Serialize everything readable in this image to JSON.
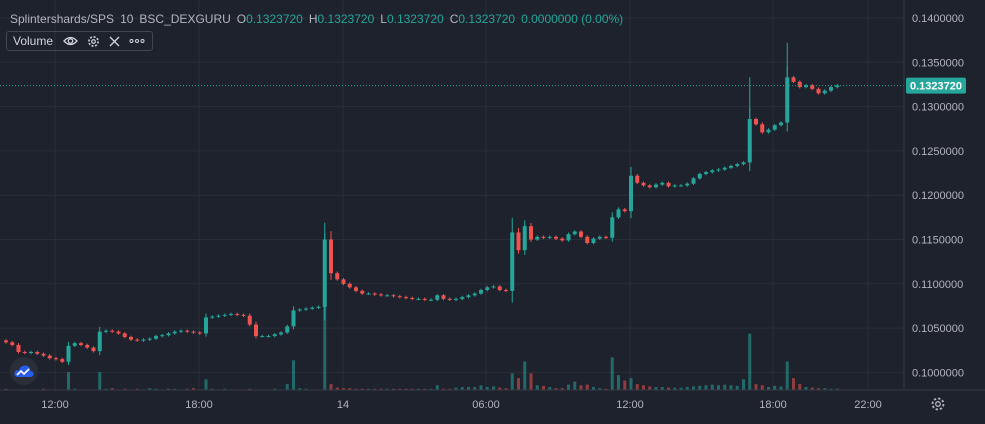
{
  "legend": {
    "symbol": "Splintershards/SPS",
    "interval": "10",
    "exchange": "BSC_DEXGURU",
    "o_label": "O",
    "o_value": "0.1323720",
    "h_label": "H",
    "h_value": "0.1323720",
    "l_label": "L",
    "l_value": "0.1323720",
    "c_label": "C",
    "c_value": "0.1323720",
    "change": "0.0000000 (0.00%)"
  },
  "volume_indicator": {
    "label": "Volume"
  },
  "colors": {
    "background": "#1e222d",
    "up": "#26a69a",
    "down": "#ef5350",
    "grid": "#2a2e39",
    "text": "#b2b5be"
  },
  "chart_data": {
    "type": "candlestick",
    "x_ticks": [
      "12:00",
      "18:00",
      "14",
      "06:00",
      "12:00",
      "18:00",
      "22:00"
    ],
    "y_ticks": [
      "0.1400000",
      "0.1350000",
      "0.1300000",
      "0.1250000",
      "0.1200000",
      "0.1150000",
      "0.1100000",
      "0.1050000",
      "0.1000000"
    ],
    "ylim": [
      0.098,
      0.141
    ],
    "last_price": "0.1323720",
    "last_price_value": 0.132372,
    "close_series": [
      0.1034,
      0.1031,
      0.1023,
      0.1022,
      0.1023,
      0.1021,
      0.1019,
      0.1016,
      0.1015,
      0.1012,
      0.103,
      0.1033,
      0.1031,
      0.1028,
      0.1024,
      0.1046,
      0.1047,
      0.1046,
      0.1044,
      0.104,
      0.1037,
      0.1036,
      0.1037,
      0.1038,
      0.1041,
      0.1042,
      0.1044,
      0.1046,
      0.1047,
      0.1046,
      0.1045,
      0.1044,
      0.1062,
      0.1063,
      0.1064,
      0.1065,
      0.1066,
      0.1065,
      0.1064,
      0.1054,
      0.1041,
      0.1041,
      0.1041,
      0.1043,
      0.1045,
      0.1052,
      0.107,
      0.1071,
      0.1072,
      0.1073,
      0.1074,
      0.115,
      0.1112,
      0.1105,
      0.11,
      0.1096,
      0.1092,
      0.1089,
      0.1089,
      0.1088,
      0.1087,
      0.1087,
      0.1086,
      0.1085,
      0.1084,
      0.1083,
      0.1083,
      0.1082,
      0.1082,
      0.1087,
      0.1083,
      0.1082,
      0.1083,
      0.1085,
      0.1087,
      0.1089,
      0.1093,
      0.1096,
      0.1097,
      0.1093,
      0.1092,
      0.1158,
      0.1138,
      0.1165,
      0.115,
      0.1153,
      0.1152,
      0.1153,
      0.1151,
      0.1149,
      0.1156,
      0.1159,
      0.1153,
      0.1146,
      0.1151,
      0.1153,
      0.1152,
      0.1175,
      0.1184,
      0.1182,
      0.1222,
      0.1214,
      0.1211,
      0.1209,
      0.1212,
      0.1214,
      0.121,
      0.1211,
      0.1211,
      0.1213,
      0.1219,
      0.1224,
      0.1226,
      0.1228,
      0.1229,
      0.1231,
      0.1233,
      0.1235,
      0.1237,
      0.1286,
      0.128,
      0.1271,
      0.1274,
      0.1279,
      0.1282,
      0.1333,
      0.1328,
      0.1322,
      0.1324,
      0.132,
      0.1315,
      0.1318,
      0.1322,
      0.1324
    ],
    "volume_series": [
      2,
      1,
      1,
      1,
      1,
      0,
      2,
      1,
      1,
      1,
      30,
      2,
      1,
      1,
      1,
      30,
      2,
      3,
      1,
      2,
      1,
      2,
      1,
      3,
      2,
      1,
      2,
      2,
      1,
      2,
      3,
      1,
      18,
      2,
      1,
      2,
      1,
      1,
      1,
      2,
      1,
      1,
      1,
      2,
      1,
      10,
      50,
      3,
      2,
      1,
      1,
      160,
      10,
      4,
      3,
      3,
      2,
      2,
      2,
      2,
      2,
      2,
      2,
      2,
      2,
      2,
      2,
      2,
      2,
      8,
      2,
      2,
      4,
      5,
      5,
      5,
      8,
      5,
      6,
      4,
      3,
      28,
      20,
      48,
      28,
      8,
      7,
      5,
      3,
      3,
      9,
      14,
      8,
      9,
      5,
      3,
      2,
      55,
      25,
      16,
      20,
      10,
      8,
      6,
      5,
      5,
      4,
      4,
      4,
      5,
      6,
      7,
      8,
      9,
      8,
      9,
      8,
      7,
      18,
      95,
      10,
      8,
      5,
      7,
      6,
      48,
      20,
      10,
      5,
      4,
      3,
      3,
      2,
      2
    ],
    "volume_max": 160
  }
}
